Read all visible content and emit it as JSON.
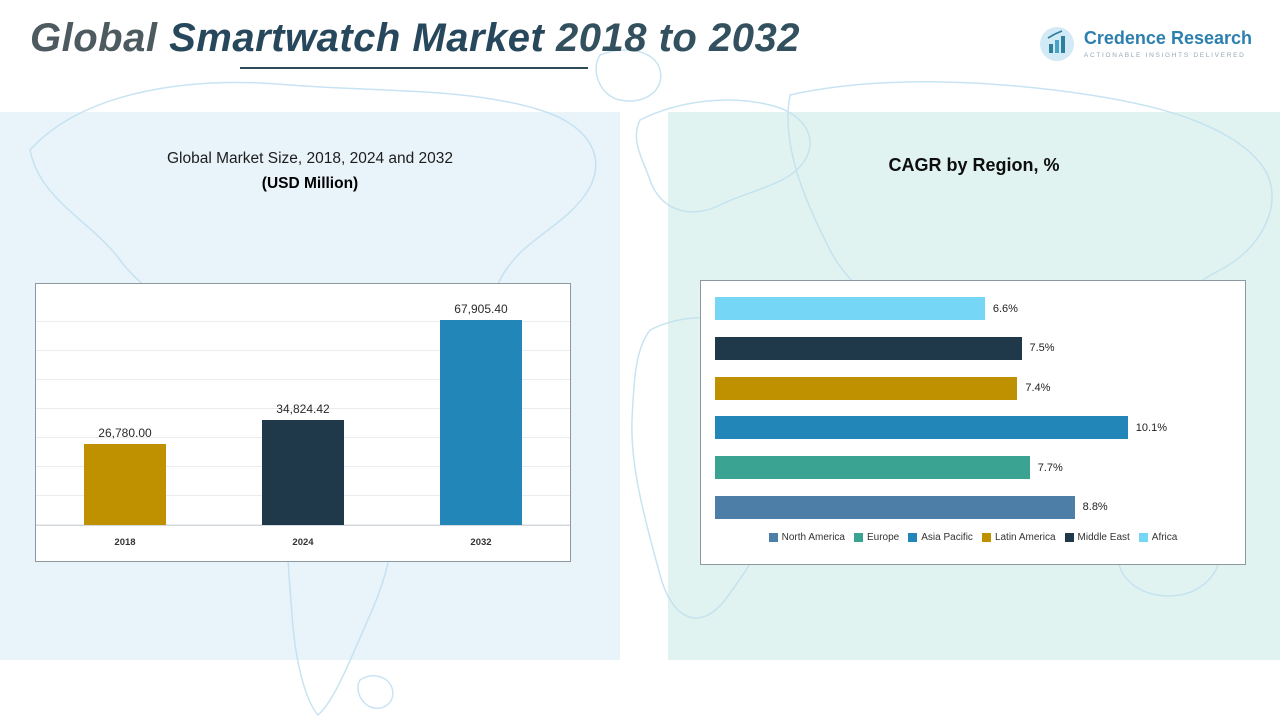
{
  "header": {
    "title_part1": "Global ",
    "title_part2": "Smartwatch Market",
    "title_part3": " 2018 to 2032",
    "logo": {
      "name": "Credence Research",
      "tagline": "Actionable Insights Delivered"
    }
  },
  "chart_data": [
    {
      "type": "bar",
      "title": "Global Market Size, 2018, 2024 and 2032",
      "subtitle": "(USD Million)",
      "categories": [
        "2018",
        "2024",
        "2032"
      ],
      "values": [
        26780.0,
        34824.42,
        67905.4
      ],
      "value_labels": [
        "26,780.00",
        "34,824.42",
        "67,905.40"
      ],
      "colors": [
        "#bf9000",
        "#20394a",
        "#2286b9"
      ],
      "xlabel": "",
      "ylabel": "",
      "ylim": [
        0,
        70000
      ],
      "grid": true,
      "legend_position": "none"
    },
    {
      "type": "bar",
      "orientation": "horizontal",
      "title": "CAGR by Region, %",
      "categories": [
        "Africa",
        "Middle East",
        "Latin America",
        "Asia Pacific",
        "Europe",
        "North America"
      ],
      "values": [
        6.6,
        7.5,
        7.4,
        10.1,
        7.7,
        8.8
      ],
      "value_labels": [
        "6.6%",
        "7.5%",
        "7.4%",
        "10.1%",
        "7.7%",
        "8.8%"
      ],
      "colors": [
        "#76d6f5",
        "#20394a",
        "#bf9000",
        "#2286b9",
        "#3aa392",
        "#4d7ea8"
      ],
      "xlabel": "",
      "ylabel": "",
      "xlim": [
        0,
        11
      ],
      "grid": false,
      "legend_position": "bottom",
      "legend": [
        {
          "label": "North America",
          "color": "#4d7ea8"
        },
        {
          "label": "Europe",
          "color": "#3aa392"
        },
        {
          "label": "Asia Pacific",
          "color": "#2286b9"
        },
        {
          "label": "Latin America",
          "color": "#bf9000"
        },
        {
          "label": "Middle East",
          "color": "#20394a"
        },
        {
          "label": "Africa",
          "color": "#76d6f5"
        }
      ]
    }
  ]
}
